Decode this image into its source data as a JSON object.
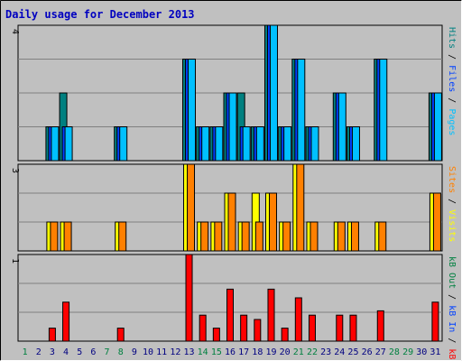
{
  "chart_data": {
    "type": "bar",
    "title": "Daily usage for December 2013",
    "categories": [
      "1",
      "2",
      "3",
      "4",
      "5",
      "6",
      "7",
      "8",
      "9",
      "10",
      "11",
      "12",
      "13",
      "14",
      "15",
      "16",
      "17",
      "18",
      "19",
      "20",
      "21",
      "22",
      "23",
      "24",
      "25",
      "26",
      "27",
      "28",
      "29",
      "30",
      "31"
    ],
    "weekend_days": [
      1,
      7,
      8,
      14,
      15,
      21,
      22,
      28,
      29
    ],
    "weekend_color": "#008040",
    "weekday_color": "#000080",
    "grid": true,
    "panels": [
      {
        "id": "hits",
        "max_label": "4",
        "ymax": 4,
        "y_label_parts": [
          {
            "text": "Pages",
            "color": "#00c0ff"
          },
          {
            "text": " / ",
            "color": "#000000"
          },
          {
            "text": "Files",
            "color": "#0040ff"
          },
          {
            "text": " / ",
            "color": "#000000"
          },
          {
            "text": "Hits",
            "color": "#008080"
          }
        ],
        "series": [
          {
            "name": "Hits",
            "color": "#008080",
            "values": [
              0,
              0,
              1,
              2,
              0,
              0,
              0,
              1,
              0,
              0,
              0,
              0,
              3,
              1,
              1,
              2,
              2,
              1,
              4,
              1,
              3,
              1,
              0,
              2,
              1,
              0,
              3,
              0,
              0,
              0,
              2
            ]
          },
          {
            "name": "Files",
            "color": "#0040ff",
            "values": [
              0,
              0,
              1,
              1,
              0,
              0,
              0,
              1,
              0,
              0,
              0,
              0,
              3,
              1,
              1,
              2,
              1,
              1,
              4,
              1,
              3,
              1,
              0,
              2,
              1,
              0,
              3,
              0,
              0,
              0,
              2
            ]
          },
          {
            "name": "Pages",
            "color": "#00c0ff",
            "values": [
              0,
              0,
              1,
              1,
              0,
              0,
              0,
              1,
              0,
              0,
              0,
              0,
              3,
              1,
              1,
              2,
              1,
              1,
              4,
              1,
              3,
              1,
              0,
              2,
              1,
              0,
              3,
              0,
              0,
              0,
              2
            ]
          }
        ]
      },
      {
        "id": "visits",
        "max_label": "3",
        "ymax": 3,
        "y_label_parts": [
          {
            "text": "Visits",
            "color": "#ffff00"
          },
          {
            "text": " / ",
            "color": "#000000"
          },
          {
            "text": "Sites",
            "color": "#ff8000"
          }
        ],
        "series": [
          {
            "name": "Visits",
            "color": "#ffff00",
            "values": [
              0,
              0,
              1,
              1,
              0,
              0,
              0,
              1,
              0,
              0,
              0,
              0,
              3,
              1,
              1,
              2,
              1,
              2,
              2,
              1,
              3,
              1,
              0,
              1,
              1,
              0,
              1,
              0,
              0,
              0,
              2
            ]
          },
          {
            "name": "Sites",
            "color": "#ff8000",
            "values": [
              0,
              0,
              1,
              1,
              0,
              0,
              0,
              1,
              0,
              0,
              0,
              0,
              3,
              1,
              1,
              2,
              1,
              1,
              2,
              1,
              3,
              1,
              0,
              1,
              1,
              0,
              1,
              0,
              0,
              0,
              2
            ]
          }
        ]
      },
      {
        "id": "kbytes",
        "max_label": "1",
        "ymax": 1,
        "y_label_parts": [
          {
            "text": "kB F",
            "color": "#ff0000"
          },
          {
            "text": " / ",
            "color": "#000000"
          },
          {
            "text": "kB In",
            "color": "#0040ff"
          },
          {
            "text": " / ",
            "color": "#000000"
          },
          {
            "text": "kB Out",
            "color": "#008040"
          }
        ],
        "series": [
          {
            "name": "kB F",
            "color": "#ff0000",
            "values": [
              0,
              0,
              0.15,
              0.45,
              0,
              0,
              0,
              0.15,
              0,
              0,
              0,
              0,
              1,
              0.3,
              0.15,
              0.6,
              0.3,
              0.25,
              0.6,
              0.15,
              0.5,
              0.3,
              0,
              0.3,
              0.3,
              0,
              0.35,
              0,
              0,
              0,
              0.45
            ]
          }
        ]
      }
    ]
  }
}
